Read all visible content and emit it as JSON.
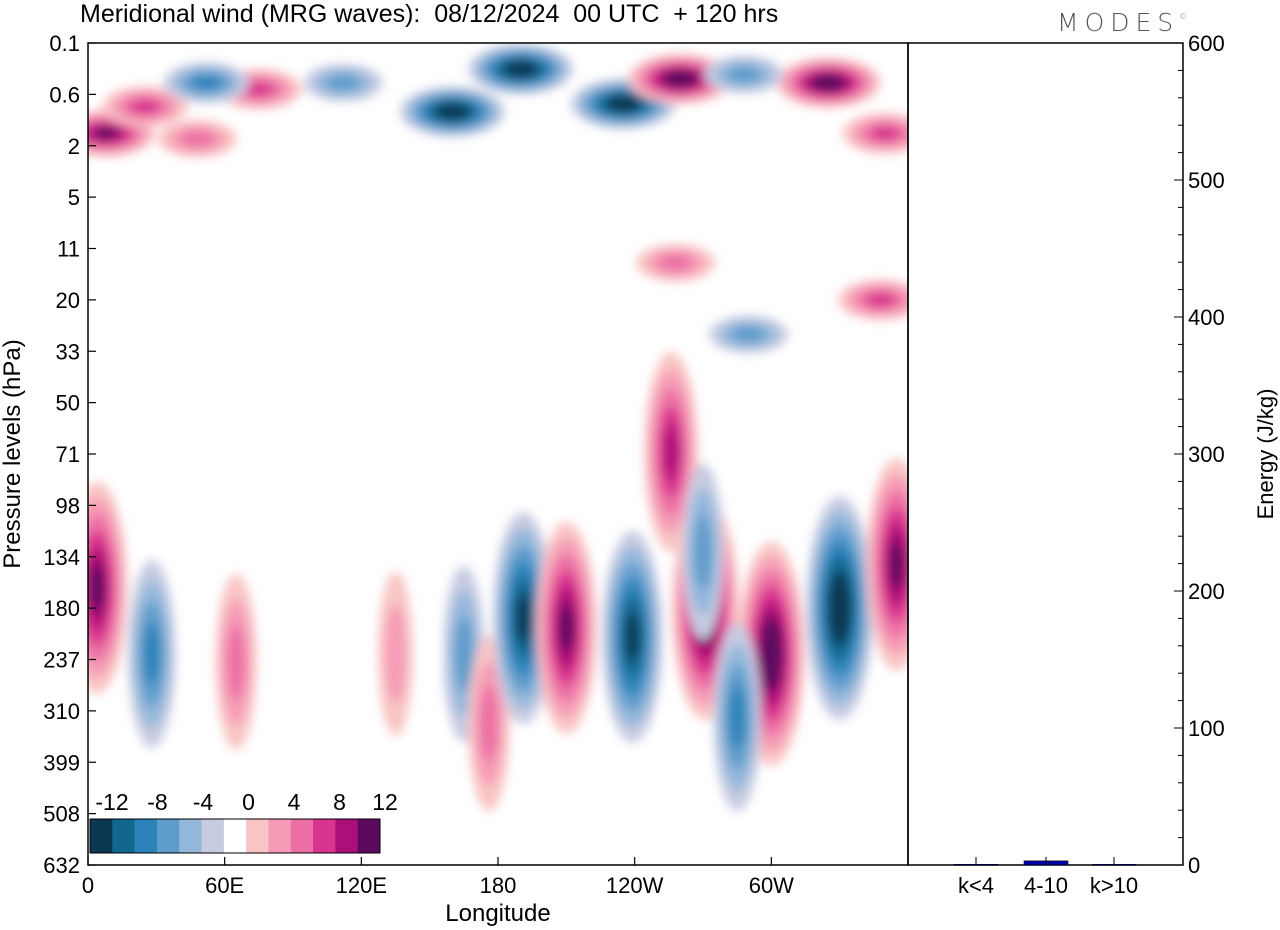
{
  "header": {
    "title": "Meridional wind (MRG waves):  08/12/2024  00 UTC  + 120 hrs",
    "brand": "MODES",
    "brand_mark": "©"
  },
  "chart_data": [
    {
      "type": "heatmap",
      "title": "Meridional wind (MRG waves):  08/12/2024  00 UTC  + 120 hrs",
      "xlabel": "Longitude",
      "ylabel": "Pressure levels (hPa)",
      "x_ticks": [
        "0",
        "60E",
        "120E",
        "180",
        "120W",
        "60W"
      ],
      "x_tick_degrees": [
        0,
        60,
        120,
        180,
        240,
        300
      ],
      "xlim_degrees": [
        0,
        360
      ],
      "y_ticks": [
        "0.1",
        "0.6",
        "2",
        "5",
        "11",
        "20",
        "33",
        "50",
        "71",
        "98",
        "134",
        "180",
        "237",
        "310",
        "399",
        "508",
        "632"
      ],
      "colorbar": {
        "labels": [
          "-12",
          "-8",
          "-4",
          "0",
          "4",
          "8",
          "12"
        ],
        "levels": [
          -14,
          -12,
          -10,
          -8,
          -6,
          -4,
          -2,
          2,
          4,
          6,
          8,
          10,
          12,
          14
        ],
        "colors": [
          "#0b3954",
          "#12678f",
          "#2b83ba",
          "#5e9ccc",
          "#93b7da",
          "#c6cbe2",
          "#ffffff",
          "#f9c4c4",
          "#f59bb6",
          "#ec6fa4",
          "#d8338e",
          "#ad0f78",
          "#5a0a5e"
        ]
      },
      "features": [
        {
          "lon": 8,
          "lev": 1.5,
          "value": 12
        },
        {
          "lon": 25,
          "lev": 0.8,
          "value": 8
        },
        {
          "lon": 48,
          "lev": 1.7,
          "value": 6
        },
        {
          "lon": 75,
          "lev": 0.5,
          "value": 8
        },
        {
          "lon": 52,
          "lev": 0.4,
          "value": -8
        },
        {
          "lon": 112,
          "lev": 0.4,
          "value": -6
        },
        {
          "lon": 160,
          "lev": 0.9,
          "value": -14
        },
        {
          "lon": 190,
          "lev": 0.25,
          "value": -14
        },
        {
          "lon": 235,
          "lev": 0.75,
          "value": -14
        },
        {
          "lon": 260,
          "lev": 0.35,
          "value": 14
        },
        {
          "lon": 325,
          "lev": 0.4,
          "value": 14
        },
        {
          "lon": 288,
          "lev": 0.3,
          "value": -6
        },
        {
          "lon": 350,
          "lev": 1.5,
          "value": 8
        },
        {
          "lon": 258,
          "lev": 13,
          "value": 6
        },
        {
          "lon": 348,
          "lev": 20,
          "value": 8
        },
        {
          "lon": 290,
          "lev": 28,
          "value": -6
        },
        {
          "lon": 4,
          "lev": 160,
          "value": 12
        },
        {
          "lon": 28,
          "lev": 230,
          "value": -8
        },
        {
          "lon": 65,
          "lev": 240,
          "value": 6
        },
        {
          "lon": 135,
          "lev": 230,
          "value": 4
        },
        {
          "lon": 165,
          "lev": 230,
          "value": -6
        },
        {
          "lon": 176,
          "lev": 330,
          "value": 6
        },
        {
          "lon": 191,
          "lev": 190,
          "value": -12
        },
        {
          "lon": 210,
          "lev": 200,
          "value": 12
        },
        {
          "lon": 239,
          "lev": 210,
          "value": -12
        },
        {
          "lon": 271,
          "lev": 180,
          "value": 14
        },
        {
          "lon": 256,
          "lev": 70,
          "value": 10
        },
        {
          "lon": 300,
          "lev": 230,
          "value": 14
        },
        {
          "lon": 330,
          "lev": 180,
          "value": -14
        },
        {
          "lon": 270,
          "lev": 130,
          "value": -6
        },
        {
          "lon": 355,
          "lev": 140,
          "value": 12
        },
        {
          "lon": 285,
          "lev": 320,
          "value": -8
        }
      ]
    },
    {
      "type": "bar",
      "ylabel": "Energy (J/kg)",
      "ylim": [
        0,
        600
      ],
      "y_ticks": [
        "0",
        "100",
        "200",
        "300",
        "400",
        "500",
        "600"
      ],
      "categories": [
        "k<4",
        "4-10",
        "k>10"
      ],
      "values": [
        0.5,
        3,
        0.5
      ],
      "colors": [
        "#0000aa",
        "#0000aa",
        "#0000aa"
      ]
    }
  ]
}
